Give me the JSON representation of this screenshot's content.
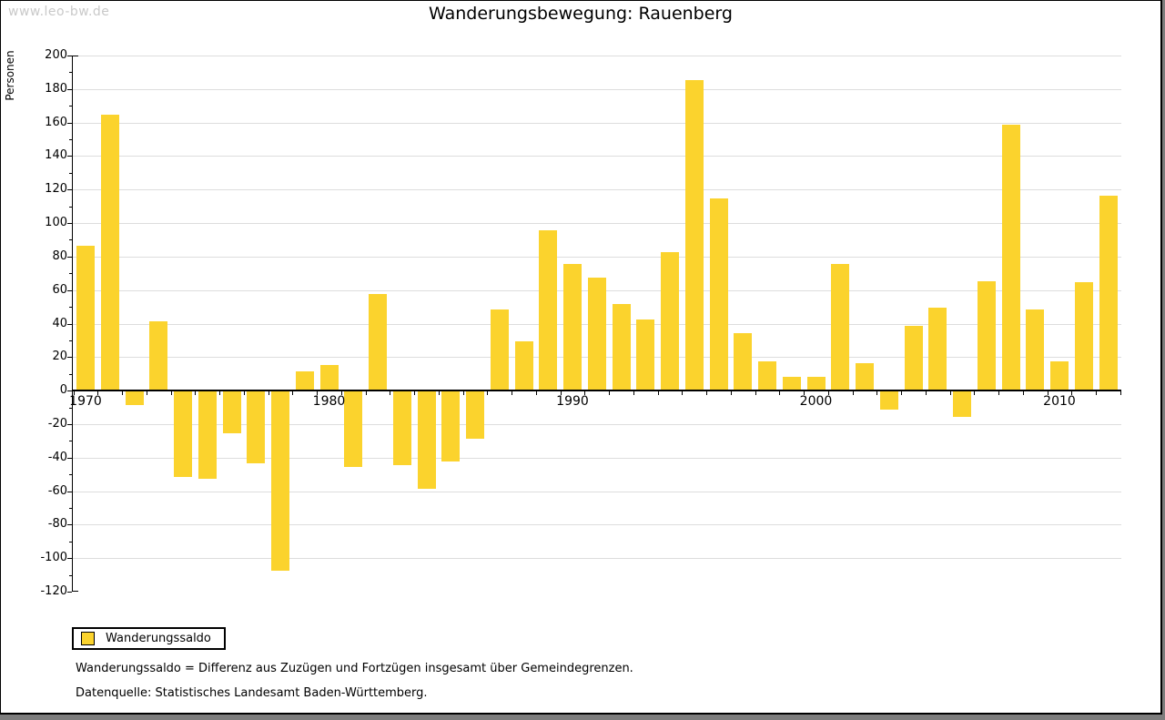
{
  "watermark": "www.leo-bw.de",
  "header": {
    "title": "Wanderungsbewegung: Rauenberg"
  },
  "legend": {
    "label": "Wanderungssaldo"
  },
  "footnotes": {
    "definition": "Wanderungssaldo = Differenz aus Zuzügen und Fortzügen insgesamt über Gemeindegrenzen.",
    "source": "Datenquelle: Statistisches Landesamt Baden-Württemberg."
  },
  "colors": {
    "bar": "#FBD32D",
    "grid": "#DDDDDD",
    "axis": "#000000",
    "watermark": "#C9C9C9",
    "frame_shadow": "#7D7D7D"
  },
  "chart_data": {
    "type": "bar",
    "title": "Wanderungsbewegung: Rauenberg",
    "xlabel": "",
    "ylabel": "Personen",
    "series_name": "Wanderungssaldo",
    "x": [
      1970,
      1971,
      1972,
      1973,
      1974,
      1975,
      1976,
      1977,
      1978,
      1979,
      1980,
      1981,
      1982,
      1983,
      1984,
      1985,
      1986,
      1987,
      1988,
      1989,
      1990,
      1991,
      1992,
      1993,
      1994,
      1995,
      1996,
      1997,
      1998,
      1999,
      2000,
      2001,
      2002,
      2003,
      2004,
      2005,
      2006,
      2007,
      2008,
      2009,
      2010,
      2011,
      2012
    ],
    "values": [
      87,
      165,
      -8,
      42,
      -51,
      -52,
      -25,
      -43,
      -107,
      12,
      16,
      -45,
      58,
      -44,
      -58,
      -42,
      -28,
      49,
      30,
      96,
      76,
      68,
      52,
      43,
      83,
      186,
      115,
      35,
      18,
      9,
      9,
      76,
      17,
      -11,
      39,
      50,
      -15,
      66,
      159,
      49,
      18,
      65,
      117
    ],
    "ylim": [
      -120,
      200
    ],
    "ytick_step": 20,
    "ytick_minor_step": 10,
    "x_labeled_ticks": [
      1970,
      1980,
      1990,
      2000,
      2010
    ],
    "grid": "horizontal",
    "legend_position": "bottom-left"
  }
}
